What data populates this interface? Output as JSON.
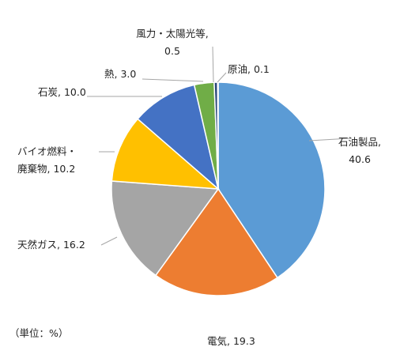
{
  "chart_data": {
    "type": "pie",
    "unit_note": "（単位：%）",
    "slices": [
      {
        "name": "石油製品",
        "value": 40.6,
        "label_lines": [
          "石油製品,",
          "40.6"
        ],
        "color": "#5b9bd5"
      },
      {
        "name": "電気",
        "value": 19.3,
        "label_lines": [
          "電気, 19.3"
        ],
        "color": "#ed7d31"
      },
      {
        "name": "天然ガス",
        "value": 16.2,
        "label_lines": [
          "天然ガス, 16.2"
        ],
        "color": "#a5a5a5"
      },
      {
        "name": "バイオ燃料・廃棄物",
        "value": 10.2,
        "label_lines": [
          "バイオ燃料・",
          "廃棄物, 10.2"
        ],
        "color": "#ffc000"
      },
      {
        "name": "石炭",
        "value": 10.0,
        "label_lines": [
          "石炭, 10.0"
        ],
        "color": "#4472c4"
      },
      {
        "name": "熱",
        "value": 3.0,
        "label_lines": [
          "熱, 3.0"
        ],
        "color": "#70ad47"
      },
      {
        "name": "風力・太陽光等",
        "value": 0.5,
        "label_lines": [
          "風力・太陽光等,",
          "0.5"
        ],
        "color": "#264478"
      },
      {
        "name": "原油",
        "value": 0.1,
        "label_lines": [
          "原油, 0.1"
        ],
        "color": "#9e480e"
      }
    ]
  }
}
